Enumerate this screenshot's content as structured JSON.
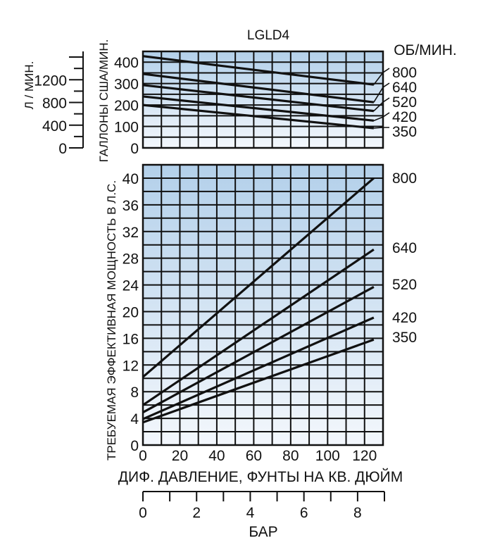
{
  "chart_data": [
    {
      "type": "line",
      "title": "LGLD4",
      "ylabel": "ГАЛЛОНЫ США/МИН.",
      "ylabel_secondary": "Л / МИН.",
      "legend_title": "ОБ/МИН.",
      "xlim": [
        0,
        130
      ],
      "ylim": [
        0,
        450
      ],
      "ylim_secondary": [
        0,
        1700
      ],
      "yticks": [
        0,
        100,
        200,
        300,
        400
      ],
      "yticks_secondary": [
        0,
        400,
        800,
        1200
      ],
      "grid": true,
      "series": [
        {
          "name": "800",
          "x": [
            0,
            125
          ],
          "y": [
            428,
            295
          ]
        },
        {
          "name": "640",
          "x": [
            0,
            125
          ],
          "y": [
            345,
            213
          ]
        },
        {
          "name": "520",
          "x": [
            0,
            125
          ],
          "y": [
            293,
            172
          ]
        },
        {
          "name": "420",
          "x": [
            0,
            125
          ],
          "y": [
            240,
            127
          ]
        },
        {
          "name": "350",
          "x": [
            0,
            125
          ],
          "y": [
            200,
            92
          ]
        }
      ]
    },
    {
      "type": "line",
      "title": "",
      "ylabel": "ТРЕБУЕМАЯ ЭФФЕКТИВНАЯ МОЩНОСТЬ В Л.С.",
      "xlabel": "ДИФ. ДАВЛЕНИЕ, ФУНТЫ НА КВ. ДЮЙМ",
      "xlabel_secondary": "БАР",
      "xlim": [
        0,
        130
      ],
      "ylim": [
        0,
        42
      ],
      "xticks": [
        0,
        20,
        40,
        60,
        80,
        100,
        120
      ],
      "yticks": [
        0,
        4,
        8,
        12,
        16,
        20,
        24,
        28,
        32,
        36,
        40
      ],
      "xticks_secondary": [
        0,
        2,
        4,
        6,
        8
      ],
      "grid": true,
      "series": [
        {
          "name": "800",
          "x": [
            0,
            125
          ],
          "y": [
            10.2,
            40.0
          ]
        },
        {
          "name": "640",
          "x": [
            0,
            125
          ],
          "y": [
            6.0,
            29.3
          ]
        },
        {
          "name": "520",
          "x": [
            0,
            125
          ],
          "y": [
            4.9,
            23.7
          ]
        },
        {
          "name": "420",
          "x": [
            0,
            125
          ],
          "y": [
            3.9,
            19.1
          ]
        },
        {
          "name": "350",
          "x": [
            0,
            125
          ],
          "y": [
            3.4,
            15.8
          ]
        }
      ]
    }
  ]
}
